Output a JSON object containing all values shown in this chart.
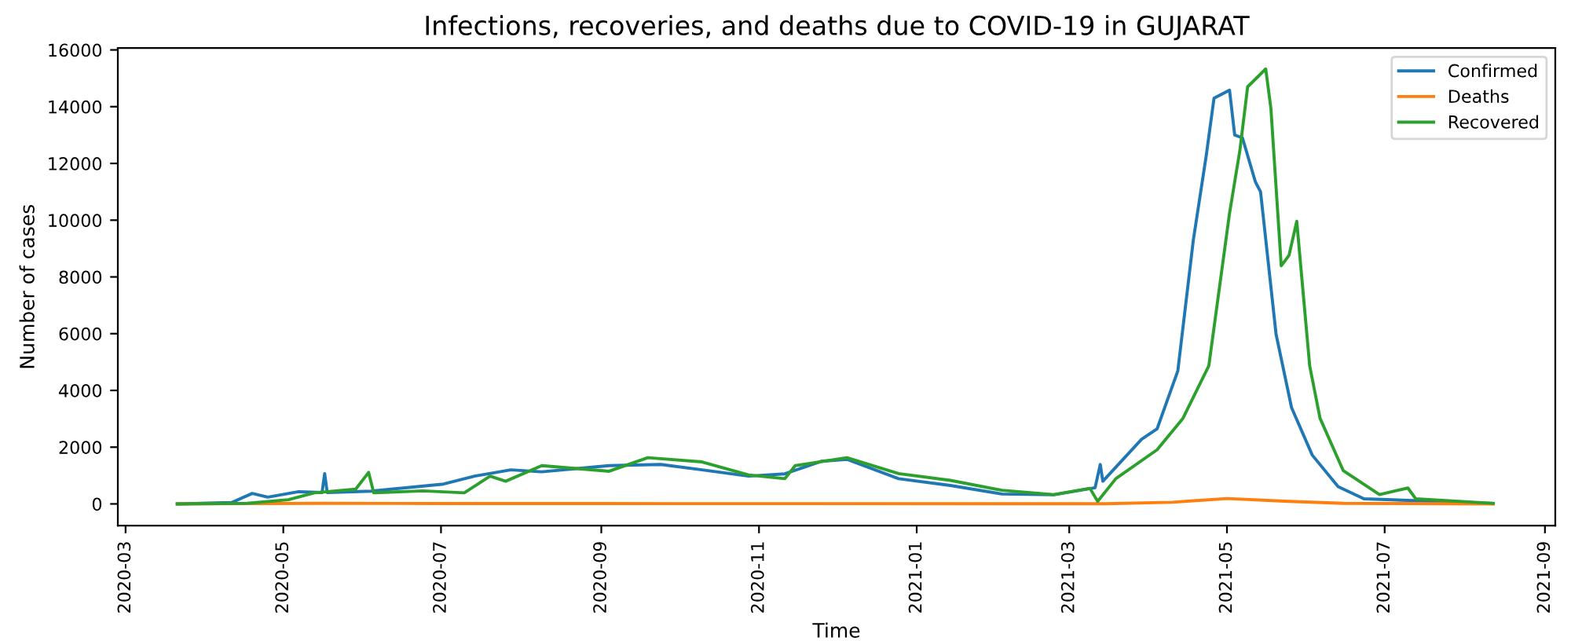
{
  "chart_data": {
    "type": "line",
    "title": "Infections, recoveries, and deaths due to COVID-19 in GUJARAT",
    "xlabel": "Time",
    "ylabel": "Number of cases",
    "xlim": [
      "2020-02-27",
      "2021-09-05"
    ],
    "xticks": [
      "2020-03",
      "2020-05",
      "2020-07",
      "2020-09",
      "2020-11",
      "2021-01",
      "2021-03",
      "2021-05",
      "2021-07",
      "2021-09"
    ],
    "ylim": [
      -765,
      16065
    ],
    "yticks": [
      0,
      2000,
      4000,
      6000,
      8000,
      10000,
      12000,
      14000,
      16000
    ],
    "grid": false,
    "legend": "top right",
    "series": [
      {
        "name": "Confirmed",
        "color": "#1f77b4",
        "x": [
          "2020-03-21",
          "2020-04-11",
          "2020-04-19",
          "2020-04-25",
          "2020-05-07",
          "2020-05-16",
          "2020-05-17",
          "2020-05-18",
          "2020-06-04",
          "2020-07-02",
          "2020-07-14",
          "2020-07-28",
          "2020-08-09",
          "2020-09-04",
          "2020-09-24",
          "2020-10-10",
          "2020-10-28",
          "2020-11-11",
          "2020-11-25",
          "2020-12-05",
          "2020-12-25",
          "2021-01-14",
          "2021-02-03",
          "2021-02-23",
          "2021-03-11",
          "2021-03-13",
          "2021-03-14",
          "2021-03-29",
          "2021-04-04",
          "2021-04-12",
          "2021-04-18",
          "2021-04-23",
          "2021-04-26",
          "2021-05-02",
          "2021-05-04",
          "2021-05-07",
          "2021-05-12",
          "2021-05-14",
          "2021-05-20",
          "2021-05-26",
          "2021-06-03",
          "2021-06-13",
          "2021-06-23",
          "2021-08-12"
        ],
        "values": [
          0,
          50,
          370,
          240,
          430,
          400,
          1070,
          400,
          450,
          700,
          980,
          1200,
          1130,
          1350,
          1390,
          1200,
          980,
          1060,
          1500,
          1570,
          890,
          650,
          350,
          320,
          570,
          1390,
          800,
          2280,
          2650,
          4690,
          9300,
          12280,
          14300,
          14580,
          13000,
          12900,
          11350,
          11000,
          5980,
          3390,
          1720,
          610,
          180,
          20
        ]
      },
      {
        "name": "Deaths",
        "color": "#ff7f0e",
        "x": [
          "2020-03-21",
          "2020-05-15",
          "2020-07-01",
          "2020-10-01",
          "2021-03-15",
          "2021-04-10",
          "2021-05-01",
          "2021-05-25",
          "2021-06-15",
          "2021-08-12"
        ],
        "values": [
          0,
          20,
          15,
          10,
          5,
          60,
          190,
          90,
          20,
          0
        ]
      },
      {
        "name": "Recovered",
        "color": "#2ca02c",
        "x": [
          "2020-03-21",
          "2020-04-17",
          "2020-05-03",
          "2020-05-13",
          "2020-05-29",
          "2020-06-03",
          "2020-06-05",
          "2020-06-24",
          "2020-07-10",
          "2020-07-20",
          "2020-07-26",
          "2020-08-09",
          "2020-09-04",
          "2020-09-19",
          "2020-10-10",
          "2020-10-28",
          "2020-11-11",
          "2020-11-15",
          "2020-12-05",
          "2020-12-25",
          "2021-01-14",
          "2021-02-03",
          "2021-02-23",
          "2021-03-09",
          "2021-03-12",
          "2021-03-19",
          "2021-04-04",
          "2021-04-14",
          "2021-04-24",
          "2021-05-02",
          "2021-05-06",
          "2021-05-09",
          "2021-05-16",
          "2021-05-18",
          "2021-05-22",
          "2021-05-25",
          "2021-05-28",
          "2021-06-02",
          "2021-06-06",
          "2021-06-15",
          "2021-06-29",
          "2021-07-10",
          "2021-07-13",
          "2021-08-12"
        ],
        "values": [
          0,
          20,
          150,
          390,
          520,
          1110,
          390,
          460,
          390,
          980,
          800,
          1350,
          1150,
          1630,
          1480,
          1020,
          890,
          1350,
          1630,
          1070,
          830,
          480,
          330,
          550,
          90,
          890,
          1910,
          3020,
          4870,
          10240,
          12460,
          14700,
          15330,
          13940,
          8390,
          8760,
          9960,
          4870,
          3020,
          1170,
          330,
          560,
          180,
          20
        ]
      }
    ]
  }
}
